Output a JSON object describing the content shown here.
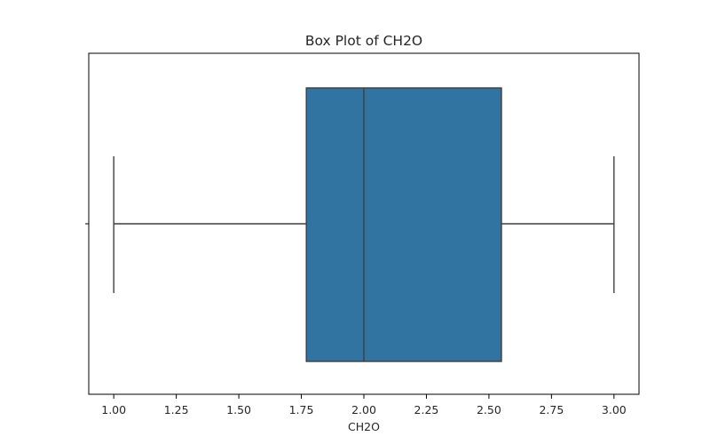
{
  "chart_data": {
    "type": "box",
    "title": "Box Plot of CH2O",
    "xlabel": "CH2O",
    "ylabel": "",
    "orientation": "horizontal",
    "xlim": [
      0.9,
      3.1
    ],
    "xticks": [
      1.0,
      1.25,
      1.5,
      1.75,
      2.0,
      2.25,
      2.5,
      2.75,
      3.0
    ],
    "xtick_labels": [
      "1.00",
      "1.25",
      "1.50",
      "1.75",
      "2.00",
      "2.25",
      "2.50",
      "2.75",
      "3.00"
    ],
    "box": {
      "whisker_low": 1.0,
      "q1": 1.77,
      "median": 2.0,
      "q3": 2.55,
      "whisker_high": 3.0
    },
    "colors": {
      "box_fill": "#3274a1",
      "line": "#3f3f3f",
      "axis": "#000000"
    },
    "grid": false
  }
}
